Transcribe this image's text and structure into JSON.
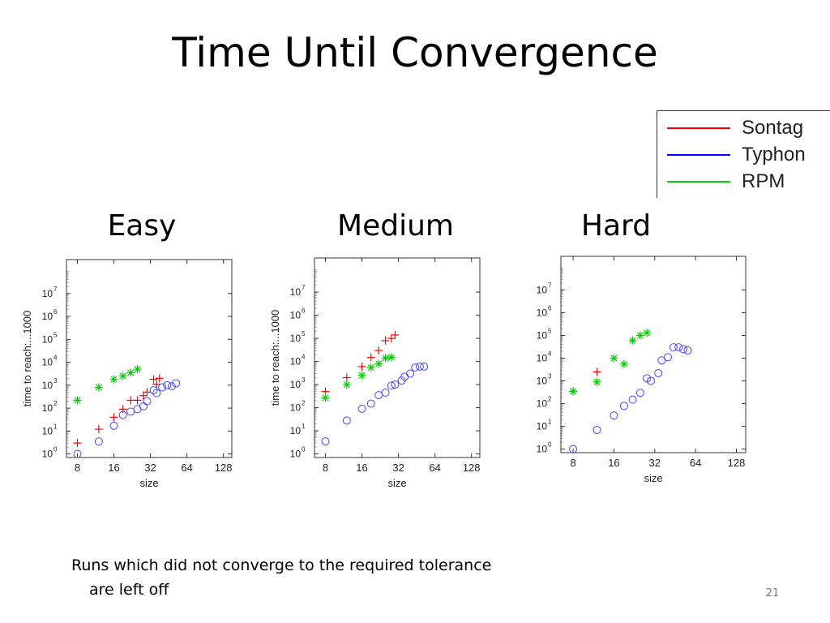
{
  "slide": {
    "title": "Time Until Convergence",
    "footnote_line1": "Runs which did not converge to the required tolerance",
    "footnote_line2": "are left off",
    "page_number": "21"
  },
  "legend": {
    "items": [
      {
        "label": "Sontag",
        "color": "#ff0000"
      },
      {
        "label": "Typhon",
        "color": "#0000ff"
      },
      {
        "label": "RPM",
        "color": "#00d000"
      }
    ]
  },
  "colors": {
    "sontag": "#ff0000",
    "typhon": "#4444ff",
    "rpm": "#00cc00"
  },
  "chart_data": [
    {
      "type": "scatter",
      "title": "Easy",
      "xlabel": "size",
      "ylabel": "time to reach:...1000",
      "x_scale": "log2",
      "y_scale": "log10",
      "xlim": [
        6.5,
        150
      ],
      "ylim": [
        0.7,
        300000000.0
      ],
      "xticks": [
        8,
        16,
        32,
        64,
        128
      ],
      "xtick_labels": [
        "8",
        "16",
        "32",
        "64",
        "128"
      ],
      "yticks": [
        1,
        10,
        100,
        1000,
        10000,
        100000,
        1000000,
        10000000
      ],
      "ytick_labels": [
        [
          "10",
          "0"
        ],
        [
          "10",
          "1"
        ],
        [
          "10",
          "2"
        ],
        [
          "10",
          "3"
        ],
        [
          "10",
          "4"
        ],
        [
          "10",
          "5"
        ],
        [
          "10",
          "6"
        ],
        [
          "10",
          "7"
        ]
      ],
      "series": [
        {
          "name": "Sontag",
          "marker": "plus",
          "color": "#ff0000",
          "points": [
            [
              8,
              3
            ],
            [
              12,
              12
            ],
            [
              16,
              40
            ],
            [
              19,
              90
            ],
            [
              22,
              220
            ],
            [
              25,
              220
            ],
            [
              28,
              350
            ],
            [
              30,
              500
            ],
            [
              34,
              1800
            ],
            [
              36,
              1100
            ],
            [
              38,
              2000
            ]
          ]
        },
        {
          "name": "Typhon",
          "marker": "circle",
          "color": "#4444ff",
          "points": [
            [
              8,
              1
            ],
            [
              12,
              3.5
            ],
            [
              16,
              17
            ],
            [
              19,
              50
            ],
            [
              22,
              70
            ],
            [
              25,
              90
            ],
            [
              28,
              120
            ],
            [
              30,
              200
            ],
            [
              34,
              600
            ],
            [
              36,
              450
            ],
            [
              40,
              800
            ],
            [
              44,
              1000
            ],
            [
              48,
              900
            ],
            [
              52,
              1200
            ]
          ]
        },
        {
          "name": "RPM",
          "marker": "asterisk",
          "color": "#00cc00",
          "points": [
            [
              8,
              220
            ],
            [
              12,
              800
            ],
            [
              16,
              1800
            ],
            [
              19,
              2500
            ],
            [
              22,
              3500
            ],
            [
              25,
              5000
            ]
          ]
        }
      ]
    },
    {
      "type": "scatter",
      "title": "Medium",
      "xlabel": "size",
      "ylabel": "time to reach:...1000",
      "x_scale": "log2",
      "y_scale": "log10",
      "xlim": [
        6.5,
        150
      ],
      "ylim": [
        0.7,
        300000000.0
      ],
      "xticks": [
        8,
        16,
        32,
        64,
        128
      ],
      "xtick_labels": [
        "8",
        "16",
        "32",
        "64",
        "128"
      ],
      "yticks": [
        1,
        10,
        100,
        1000,
        10000,
        100000,
        1000000,
        10000000
      ],
      "ytick_labels": [
        [
          "10",
          "0"
        ],
        [
          "10",
          "1"
        ],
        [
          "10",
          "2"
        ],
        [
          "10",
          "3"
        ],
        [
          "10",
          "4"
        ],
        [
          "10",
          "5"
        ],
        [
          "10",
          "6"
        ],
        [
          "10",
          "7"
        ]
      ],
      "series": [
        {
          "name": "Sontag",
          "marker": "plus",
          "color": "#ff0000",
          "points": [
            [
              8,
              500
            ],
            [
              12,
              2000
            ],
            [
              16,
              6000
            ],
            [
              19,
              15000
            ],
            [
              22,
              30000
            ],
            [
              25,
              80000
            ],
            [
              28,
              100000
            ],
            [
              30,
              140000
            ]
          ]
        },
        {
          "name": "Typhon",
          "marker": "circle",
          "color": "#4444ff",
          "points": [
            [
              8,
              3.5
            ],
            [
              12,
              28
            ],
            [
              16,
              90
            ],
            [
              19,
              150
            ],
            [
              22,
              350
            ],
            [
              25,
              450
            ],
            [
              28,
              900
            ],
            [
              30,
              1000
            ],
            [
              34,
              1500
            ],
            [
              36,
              2200
            ],
            [
              40,
              3000
            ],
            [
              44,
              5500
            ],
            [
              48,
              6000
            ],
            [
              52,
              6000
            ]
          ]
        },
        {
          "name": "RPM",
          "marker": "asterisk",
          "color": "#00cc00",
          "points": [
            [
              8,
              270
            ],
            [
              12,
              1000
            ],
            [
              16,
              2500
            ],
            [
              19,
              5500
            ],
            [
              22,
              8000
            ],
            [
              25,
              14000
            ],
            [
              28,
              15000
            ]
          ]
        }
      ]
    },
    {
      "type": "scatter",
      "title": "Hard",
      "xlabel": "size",
      "ylabel": "time to reach:...1000",
      "x_scale": "log2",
      "y_scale": "log10",
      "xlim": [
        6.5,
        150
      ],
      "ylim": [
        0.7,
        300000000.0
      ],
      "xticks": [
        8,
        16,
        32,
        64,
        128
      ],
      "xtick_labels": [
        "8",
        "16",
        "32",
        "64",
        "128"
      ],
      "yticks": [
        1,
        10,
        100,
        1000,
        10000,
        100000,
        1000000,
        10000000
      ],
      "ytick_labels": [
        [
          "10",
          "0"
        ],
        [
          "10",
          "1"
        ],
        [
          "10",
          "2"
        ],
        [
          "10",
          "3"
        ],
        [
          "10",
          "4"
        ],
        [
          "10",
          "5"
        ],
        [
          "10",
          "6"
        ],
        [
          "10",
          "7"
        ]
      ],
      "series": [
        {
          "name": "Sontag",
          "marker": "plus",
          "color": "#ff0000",
          "points": [
            [
              8,
              350
            ],
            [
              12,
              2500
            ]
          ]
        },
        {
          "name": "Typhon",
          "marker": "circle",
          "color": "#4444ff",
          "points": [
            [
              8,
              1
            ],
            [
              12,
              7
            ],
            [
              16,
              30
            ],
            [
              19,
              80
            ],
            [
              22,
              150
            ],
            [
              25,
              300
            ],
            [
              28,
              1300
            ],
            [
              30,
              1000
            ],
            [
              34,
              2200
            ],
            [
              36,
              8000
            ],
            [
              40,
              11000
            ],
            [
              44,
              30000
            ],
            [
              48,
              30000
            ],
            [
              52,
              25000
            ],
            [
              56,
              22000
            ]
          ]
        },
        {
          "name": "RPM",
          "marker": "asterisk",
          "color": "#00cc00",
          "points": [
            [
              8,
              350
            ],
            [
              12,
              900
            ],
            [
              16,
              10000
            ],
            [
              19,
              5500
            ],
            [
              22,
              60000
            ],
            [
              25,
              100000
            ],
            [
              28,
              130000
            ]
          ]
        }
      ]
    }
  ]
}
